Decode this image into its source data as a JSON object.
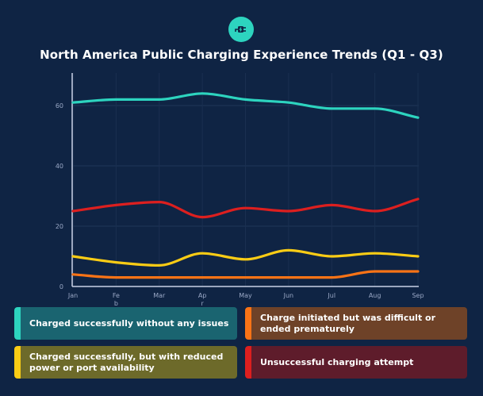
{
  "header": {
    "logo_icon": "ev-charging-plug-icon",
    "title": "North America Public Charging Experience Trends (Q1 - Q3)"
  },
  "chart_data": {
    "type": "line",
    "title": "North America Public Charging Experience Trends (Q1 - Q3)",
    "xlabel": "",
    "ylabel": "",
    "x": [
      "Jan",
      "Feb",
      "Mar",
      "Apr",
      "May",
      "Jun",
      "Jul",
      "Aug",
      "Sep"
    ],
    "x_tick_labels": [
      [
        "Jan"
      ],
      [
        "Fe",
        "b"
      ],
      [
        "Mar"
      ],
      [
        "Ap",
        "r"
      ],
      [
        "May"
      ],
      [
        "Jun"
      ],
      [
        "Jul"
      ],
      [
        "Aug"
      ],
      [
        "Sep"
      ]
    ],
    "y_ticks": [
      0,
      20,
      40,
      60
    ],
    "ylim": [
      0,
      70
    ],
    "grid": true,
    "legend_placement": "bottom",
    "series": [
      {
        "name": "Charged successfully without any issues",
        "color": "#2dd4bf",
        "values": [
          61,
          62,
          62,
          64,
          62,
          61,
          59,
          59,
          56
        ]
      },
      {
        "name": "Charge initiated but was difficult or ended prematurely",
        "color": "#f97316",
        "values": [
          4,
          3,
          3,
          3,
          3,
          3,
          3,
          5,
          5
        ]
      },
      {
        "name": "Charged successfully, but with reduced power or port availability",
        "color": "#facc15",
        "values": [
          10,
          8,
          7,
          11,
          9,
          12,
          10,
          11,
          10
        ]
      },
      {
        "name": "Unsuccessful charging attempt",
        "color": "#dc1f1f",
        "values": [
          25,
          27,
          28,
          23,
          26,
          25,
          27,
          25,
          29
        ]
      }
    ]
  },
  "legend": [
    {
      "label": "Charged successfully without any issues",
      "color": "#2dd4bf",
      "bg": "#1a6470"
    },
    {
      "label": "Charge initiated but was difficult or ended prematurely",
      "color": "#f97316",
      "bg": "#6e4228"
    },
    {
      "label": "Charged successfully, but with reduced power or port availability",
      "color": "#facc15",
      "bg": "#6d6a2a"
    },
    {
      "label": "Unsuccessful charging attempt",
      "color": "#dc1f1f",
      "bg": "#5e1c2b"
    }
  ]
}
